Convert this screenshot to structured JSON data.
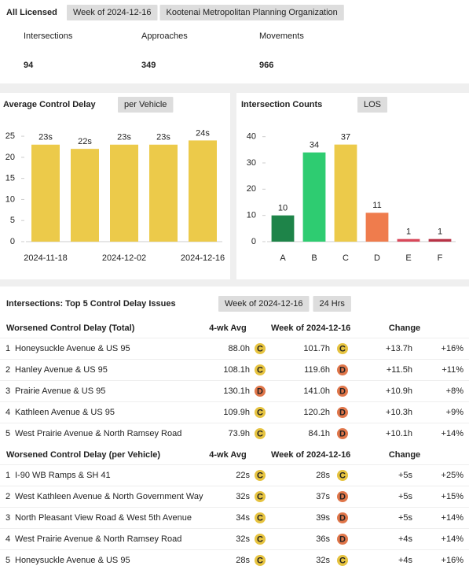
{
  "header": {
    "title": "All Licensed",
    "week": "Week of 2024-12-16",
    "org": "Kootenai Metropolitan Planning Organization"
  },
  "kpis": [
    {
      "label": "Intersections",
      "value": 94
    },
    {
      "label": "Approaches",
      "value": 349
    },
    {
      "label": "Movements",
      "value": 966
    }
  ],
  "delay_chart": {
    "type": "bar",
    "title": "Average Control Delay",
    "tag": "per Vehicle",
    "categories": [
      "2024-11-18",
      null,
      "2024-12-02",
      null,
      "2024-12-16"
    ],
    "values": [
      23,
      22,
      23,
      23,
      24
    ],
    "value_labels": [
      "23s",
      "22s",
      "23s",
      "23s",
      "24s"
    ],
    "color": "#ecca4a",
    "ylim": [
      0,
      28
    ],
    "yticks": [
      0,
      5,
      10,
      15,
      20,
      25
    ]
  },
  "los_chart": {
    "type": "bar",
    "title": "Intersection Counts",
    "tag": "LOS",
    "categories": [
      "A",
      "B",
      "C",
      "D",
      "E",
      "F"
    ],
    "values": [
      10,
      34,
      37,
      11,
      1,
      1
    ],
    "colors": [
      "#1e8449",
      "#2ecc71",
      "#ecca4a",
      "#ef7c4d",
      "#d9485a",
      "#b83246"
    ],
    "ylim": [
      0,
      45
    ],
    "yticks": [
      0,
      10,
      20,
      30,
      40
    ]
  },
  "los_colors": {
    "C": "#e6c340",
    "D": "#e0764a"
  },
  "issues": {
    "title": "Intersections: Top 5 Control Delay Issues",
    "week": "Week of 2024-12-16",
    "range": "24 Hrs",
    "sections": [
      {
        "title": "Worsened Control Delay (Total)",
        "columns": [
          "4-wk Avg",
          "Week of 2024-12-16",
          "Change"
        ],
        "rows": [
          {
            "rank": 1,
            "name": "Honeysuckle Avenue & US 95",
            "avg": "88.0h",
            "avg_los": "C",
            "week": "101.7h",
            "week_los": "C",
            "change": "+13.7h",
            "pct": "+16%"
          },
          {
            "rank": 2,
            "name": "Hanley Avenue & US 95",
            "avg": "108.1h",
            "avg_los": "C",
            "week": "119.6h",
            "week_los": "D",
            "change": "+11.5h",
            "pct": "+11%"
          },
          {
            "rank": 3,
            "name": "Prairie Avenue & US 95",
            "avg": "130.1h",
            "avg_los": "D",
            "week": "141.0h",
            "week_los": "D",
            "change": "+10.9h",
            "pct": "+8%"
          },
          {
            "rank": 4,
            "name": "Kathleen Avenue & US 95",
            "avg": "109.9h",
            "avg_los": "C",
            "week": "120.2h",
            "week_los": "D",
            "change": "+10.3h",
            "pct": "+9%"
          },
          {
            "rank": 5,
            "name": "West Prairie Avenue & North Ramsey Road",
            "avg": "73.9h",
            "avg_los": "C",
            "week": "84.1h",
            "week_los": "D",
            "change": "+10.1h",
            "pct": "+14%"
          }
        ]
      },
      {
        "title": "Worsened Control Delay (per Vehicle)",
        "columns": [
          "4-wk Avg",
          "Week of 2024-12-16",
          "Change"
        ],
        "rows": [
          {
            "rank": 1,
            "name": "I-90 WB Ramps & SH 41",
            "avg": "22s",
            "avg_los": "C",
            "week": "28s",
            "week_los": "C",
            "change": "+5s",
            "pct": "+25%"
          },
          {
            "rank": 2,
            "name": "West Kathleen Avenue & North Government Way",
            "avg": "32s",
            "avg_los": "C",
            "week": "37s",
            "week_los": "D",
            "change": "+5s",
            "pct": "+15%"
          },
          {
            "rank": 3,
            "name": "North Pleasant View Road & West 5th Avenue",
            "avg": "34s",
            "avg_los": "C",
            "week": "39s",
            "week_los": "D",
            "change": "+5s",
            "pct": "+14%"
          },
          {
            "rank": 4,
            "name": "West Prairie Avenue & North Ramsey Road",
            "avg": "32s",
            "avg_los": "C",
            "week": "36s",
            "week_los": "D",
            "change": "+4s",
            "pct": "+14%"
          },
          {
            "rank": 5,
            "name": "Honeysuckle Avenue & US 95",
            "avg": "28s",
            "avg_los": "C",
            "week": "32s",
            "week_los": "C",
            "change": "+4s",
            "pct": "+16%"
          }
        ]
      }
    ]
  }
}
